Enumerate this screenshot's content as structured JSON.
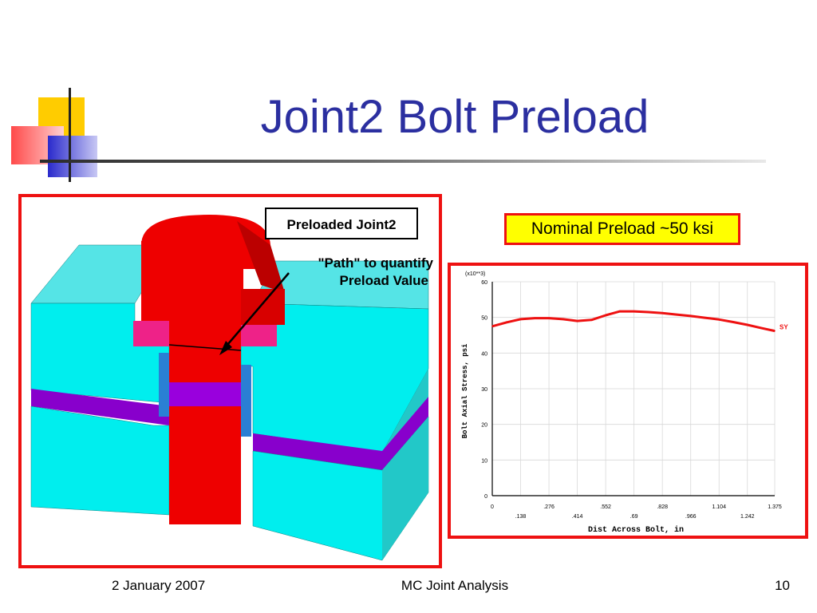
{
  "slide": {
    "title": "Joint2 Bolt Preload",
    "model_label": "Preloaded Joint2",
    "path_annotation_line1": "\"Path\" to quantify",
    "path_annotation_line2": "Preload Value",
    "preload_callout": "Nominal Preload ~50 ksi",
    "footer_date": "2 January 2007",
    "footer_center": "MC Joint Analysis",
    "footer_page": "10"
  },
  "colors": {
    "title": "#2b2fa0",
    "frame": "#ee1111",
    "callout_fill": "#ffff00",
    "bolt": "#ee0000",
    "plate": "#00eeee",
    "gasket": "#8800cc",
    "washer": "#ee2288",
    "curve": "#ee1111"
  },
  "chart_data": {
    "type": "line",
    "xlabel": "Dist Across Bolt, in",
    "ylabel": "Bolt Axial Stress, psi",
    "y_multiplier_label": "(x10**3)",
    "xlim": [
      0,
      1.375
    ],
    "ylim": [
      0,
      60
    ],
    "x_ticks_upper": [
      "0",
      ".276",
      ".552",
      ".828",
      "1.104",
      "1.375"
    ],
    "x_ticks_lower": [
      ".138",
      ".414",
      ".69",
      ".966",
      "1.242"
    ],
    "y_ticks": [
      "0",
      "10",
      "20",
      "30",
      "40",
      "50",
      "60"
    ],
    "grid": true,
    "series": [
      {
        "name": "SY",
        "x": [
          0,
          0.069,
          0.138,
          0.207,
          0.276,
          0.345,
          0.414,
          0.483,
          0.552,
          0.621,
          0.69,
          0.759,
          0.828,
          0.897,
          0.966,
          1.035,
          1.104,
          1.173,
          1.242,
          1.311,
          1.375
        ],
        "values": [
          47.5,
          48.6,
          49.5,
          49.8,
          49.8,
          49.5,
          49.0,
          49.3,
          50.6,
          51.7,
          51.7,
          51.5,
          51.2,
          50.8,
          50.4,
          49.9,
          49.4,
          48.7,
          47.9,
          47.0,
          46.2
        ]
      }
    ]
  }
}
